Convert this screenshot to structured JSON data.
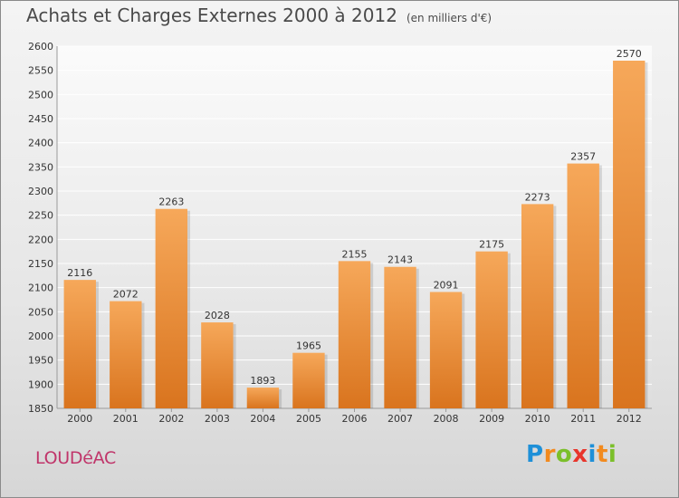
{
  "chart_data": {
    "type": "bar",
    "title": "Achats et Charges Externes 2000 à 2012",
    "subtitle": "(en milliers d'€)",
    "categories": [
      "2000",
      "2001",
      "2002",
      "2003",
      "2004",
      "2005",
      "2006",
      "2007",
      "2008",
      "2009",
      "2010",
      "2011",
      "2012"
    ],
    "values": [
      2116,
      2072,
      2263,
      2028,
      1893,
      1965,
      2155,
      2143,
      2091,
      2175,
      2273,
      2357,
      2570
    ],
    "ylim": [
      1850,
      2600
    ],
    "yticks": [
      1850,
      1900,
      1950,
      2000,
      2050,
      2100,
      2150,
      2200,
      2250,
      2300,
      2350,
      2400,
      2450,
      2500,
      2550,
      2600
    ],
    "grid": true,
    "bar_color_top": "#f6a85a",
    "bar_color_bottom": "#d9741e"
  },
  "footer": {
    "town": "LOUDéAC",
    "logo_letters": [
      "P",
      "r",
      "o",
      "x",
      "i",
      "t",
      "i"
    ],
    "logo_colors": [
      "#1e90d8",
      "#f28a1e",
      "#7bbf2a",
      "#e8352b",
      "#1e90d8",
      "#f28a1e",
      "#7bbf2a"
    ]
  }
}
